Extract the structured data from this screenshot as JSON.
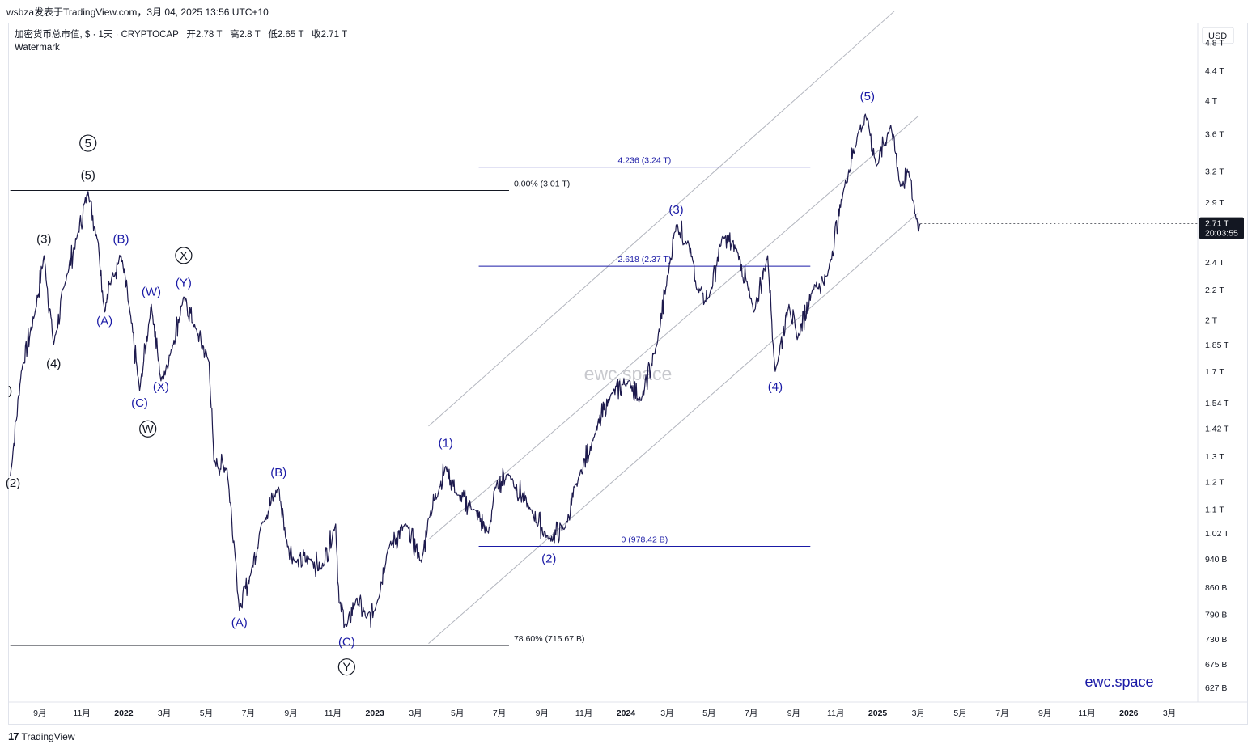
{
  "header": {
    "title": "wsbza发表于TradingView.com，3月 04, 2025 13:56 UTC+10"
  },
  "legend": {
    "symbol": "加密货币总市值, $ · 1天 · CRYPTOCAP",
    "open_label": "开",
    "open": "2.78 T",
    "high_label": "高",
    "high": "2.8 T",
    "low_label": "低",
    "low": "2.65 T",
    "close_label": "收",
    "close": "2.71 T",
    "watermark": "Watermark"
  },
  "footer": {
    "logo": "17",
    "brand": "TradingView"
  },
  "brand_text": "ewc.space",
  "watermark_center": "ewc.space",
  "colors": {
    "price": "#1d1a4d",
    "wave_blue": "#1a1aa6",
    "wave_black": "#131722",
    "channel": "#b2b5be",
    "fib_blue": "#1a1aa6",
    "fib_black": "#131722",
    "price_badge": "#131722"
  },
  "chart_data": {
    "type": "line",
    "title": "",
    "series_name": "",
    "y_unit": "USD",
    "ylim": [
      0.6,
      5.1
    ],
    "y_scale": "log",
    "y_ticks": [
      {
        "label": "4.8 T",
        "v": 4.8
      },
      {
        "label": "4.4 T",
        "v": 4.4
      },
      {
        "label": "4 T",
        "v": 4.0
      },
      {
        "label": "3.6 T",
        "v": 3.6
      },
      {
        "label": "3.2 T",
        "v": 3.2
      },
      {
        "label": "2.9 T",
        "v": 2.9
      },
      {
        "label": "2.4 T",
        "v": 2.4
      },
      {
        "label": "2.2 T",
        "v": 2.2
      },
      {
        "label": "2 T",
        "v": 2.0
      },
      {
        "label": "1.85 T",
        "v": 1.85
      },
      {
        "label": "1.7 T",
        "v": 1.7
      },
      {
        "label": "1.54 T",
        "v": 1.54
      },
      {
        "label": "1.42 T",
        "v": 1.42
      },
      {
        "label": "1.3 T",
        "v": 1.3
      },
      {
        "label": "1.2 T",
        "v": 1.2
      },
      {
        "label": "1.1 T",
        "v": 1.1
      },
      {
        "label": "1.02 T",
        "v": 1.02
      },
      {
        "label": "940 B",
        "v": 0.94
      },
      {
        "label": "860 B",
        "v": 0.86
      },
      {
        "label": "790 B",
        "v": 0.79
      },
      {
        "label": "730 B",
        "v": 0.73
      },
      {
        "label": "675 B",
        "v": 0.675
      },
      {
        "label": "627 B",
        "v": 0.627
      }
    ],
    "x_ticks": [
      {
        "label": "9月",
        "t": "2021-09"
      },
      {
        "label": "11月",
        "t": "2021-11"
      },
      {
        "label": "2022",
        "t": "2022-01"
      },
      {
        "label": "3月",
        "t": "2022-03"
      },
      {
        "label": "5月",
        "t": "2022-05"
      },
      {
        "label": "7月",
        "t": "2022-07"
      },
      {
        "label": "9月",
        "t": "2022-09"
      },
      {
        "label": "11月",
        "t": "2022-11"
      },
      {
        "label": "2023",
        "t": "2023-01"
      },
      {
        "label": "3月",
        "t": "2023-03"
      },
      {
        "label": "5月",
        "t": "2023-05"
      },
      {
        "label": "7月",
        "t": "2023-07"
      },
      {
        "label": "9月",
        "t": "2023-09"
      },
      {
        "label": "11月",
        "t": "2023-11"
      },
      {
        "label": "2024",
        "t": "2024-01"
      },
      {
        "label": "3月",
        "t": "2024-03"
      },
      {
        "label": "5月",
        "t": "2024-05"
      },
      {
        "label": "7月",
        "t": "2024-07"
      },
      {
        "label": "9月",
        "t": "2024-09"
      },
      {
        "label": "11月",
        "t": "2024-11"
      },
      {
        "label": "2025",
        "t": "2025-01"
      },
      {
        "label": "3月",
        "t": "2025-03"
      },
      {
        "label": "5月",
        "t": "2025-05"
      },
      {
        "label": "7月",
        "t": "2025-07"
      },
      {
        "label": "9月",
        "t": "2025-09"
      },
      {
        "label": "11月",
        "t": "2025-11"
      },
      {
        "label": "2026",
        "t": "2026-01"
      },
      {
        "label": "3月",
        "t": "2026-03"
      }
    ],
    "price_points": [
      [
        "2021-07-20",
        1.22
      ],
      [
        "2021-08-05",
        1.7
      ],
      [
        "2021-08-25",
        2.05
      ],
      [
        "2021-09-07",
        2.45
      ],
      [
        "2021-09-21",
        1.85
      ],
      [
        "2021-10-10",
        2.3
      ],
      [
        "2021-10-25",
        2.6
      ],
      [
        "2021-11-10",
        3.0
      ],
      [
        "2021-11-25",
        2.55
      ],
      [
        "2021-12-04",
        2.05
      ],
      [
        "2021-12-15",
        2.3
      ],
      [
        "2021-12-28",
        2.45
      ],
      [
        "2022-01-10",
        2.05
      ],
      [
        "2022-01-24",
        1.6
      ],
      [
        "2022-02-10",
        2.1
      ],
      [
        "2022-02-24",
        1.65
      ],
      [
        "2022-03-10",
        1.8
      ],
      [
        "2022-03-29",
        2.15
      ],
      [
        "2022-04-15",
        1.95
      ],
      [
        "2022-05-05",
        1.75
      ],
      [
        "2022-05-12",
        1.28
      ],
      [
        "2022-05-31",
        1.25
      ],
      [
        "2022-06-13",
        0.93
      ],
      [
        "2022-06-18",
        0.8
      ],
      [
        "2022-07-05",
        0.9
      ],
      [
        "2022-07-20",
        1.05
      ],
      [
        "2022-08-14",
        1.18
      ],
      [
        "2022-08-25",
        1.0
      ],
      [
        "2022-09-07",
        0.93
      ],
      [
        "2022-09-30",
        0.94
      ],
      [
        "2022-10-15",
        0.91
      ],
      [
        "2022-11-05",
        1.05
      ],
      [
        "2022-11-10",
        0.82
      ],
      [
        "2022-11-21",
        0.76
      ],
      [
        "2022-12-05",
        0.83
      ],
      [
        "2022-12-20",
        0.78
      ],
      [
        "2023-01-01",
        0.8
      ],
      [
        "2023-01-20",
        0.97
      ],
      [
        "2023-02-15",
        1.05
      ],
      [
        "2023-03-10",
        0.93
      ],
      [
        "2023-03-20",
        1.07
      ],
      [
        "2023-04-05",
        1.18
      ],
      [
        "2023-04-14",
        1.26
      ],
      [
        "2023-05-01",
        1.15
      ],
      [
        "2023-05-25",
        1.1
      ],
      [
        "2023-06-15",
        1.02
      ],
      [
        "2023-06-25",
        1.18
      ],
      [
        "2023-07-14",
        1.23
      ],
      [
        "2023-08-15",
        1.1
      ],
      [
        "2023-09-11",
        1.0
      ],
      [
        "2023-10-05",
        1.04
      ],
      [
        "2023-10-25",
        1.22
      ],
      [
        "2023-11-15",
        1.38
      ],
      [
        "2023-12-10",
        1.58
      ],
      [
        "2024-01-05",
        1.65
      ],
      [
        "2024-01-23",
        1.55
      ],
      [
        "2024-02-15",
        1.85
      ],
      [
        "2024-03-05",
        2.4
      ],
      [
        "2024-03-14",
        2.7
      ],
      [
        "2024-04-01",
        2.55
      ],
      [
        "2024-04-13",
        2.2
      ],
      [
        "2024-05-01",
        2.15
      ],
      [
        "2024-05-20",
        2.6
      ],
      [
        "2024-06-10",
        2.5
      ],
      [
        "2024-07-05",
        2.05
      ],
      [
        "2024-07-25",
        2.45
      ],
      [
        "2024-08-05",
        1.7
      ],
      [
        "2024-08-25",
        2.1
      ],
      [
        "2024-09-06",
        1.88
      ],
      [
        "2024-09-28",
        2.2
      ],
      [
        "2024-10-20",
        2.3
      ],
      [
        "2024-11-12",
        3.0
      ],
      [
        "2024-12-05",
        3.65
      ],
      [
        "2024-12-17",
        3.78
      ],
      [
        "2024-12-30",
        3.25
      ],
      [
        "2025-01-20",
        3.7
      ],
      [
        "2025-02-03",
        3.05
      ],
      [
        "2025-02-15",
        3.2
      ],
      [
        "2025-02-26",
        2.75
      ],
      [
        "2025-03-04",
        2.71
      ]
    ],
    "last_price": {
      "label": "2.71 T",
      "countdown": "20:03:55"
    },
    "fib_levels": [
      {
        "label": "4.236 (3.24 T)",
        "v": 3.24,
        "t_start": "2023-06-01",
        "t_end": "2024-09-25",
        "color": "blue"
      },
      {
        "label": "2.618 (2.37 T)",
        "v": 2.37,
        "t_start": "2023-06-01",
        "t_end": "2024-09-25",
        "color": "blue"
      },
      {
        "label": "0 (978.42 B)",
        "v": 0.97842,
        "t_start": "2023-06-01",
        "t_end": "2024-09-25",
        "color": "blue"
      },
      {
        "label": "0.00% (3.01 T)",
        "v": 3.01,
        "t_start": "2021-07-20",
        "t_end": "2023-07-15",
        "color": "black"
      },
      {
        "label": "78.60% (715.67 B)",
        "v": 0.71567,
        "t_start": "2021-07-20",
        "t_end": "2023-07-15",
        "color": "black"
      }
    ],
    "channels": [
      {
        "t1": "2023-03-20",
        "v1": 1.43,
        "t2": "2025-01-25",
        "v2": 5.3
      },
      {
        "t1": "2023-03-20",
        "v1": 1.0,
        "t2": "2025-02-28",
        "v2": 3.8
      },
      {
        "t1": "2023-03-20",
        "v1": 0.72,
        "t2": "2025-02-28",
        "v2": 2.8
      }
    ],
    "wave_labels": [
      {
        "text": "(1)",
        "t": "2023-04-14",
        "v": 1.34,
        "color": "blue",
        "circle": false
      },
      {
        "text": "(2)",
        "t": "2023-09-11",
        "v": 0.93,
        "color": "blue",
        "circle": false
      },
      {
        "text": "(3)",
        "t": "2024-03-14",
        "v": 2.8,
        "color": "blue",
        "circle": false
      },
      {
        "text": "(4)",
        "t": "2024-08-05",
        "v": 1.6,
        "color": "blue",
        "circle": false
      },
      {
        "text": "(5)",
        "t": "2024-12-17",
        "v": 4.0,
        "color": "blue",
        "circle": false
      },
      {
        "text": "(A)",
        "t": "2021-12-04",
        "v": 1.97,
        "color": "blue",
        "circle": false
      },
      {
        "text": "(B)",
        "t": "2021-12-28",
        "v": 2.55,
        "color": "blue",
        "circle": false
      },
      {
        "text": "(C)",
        "t": "2022-01-24",
        "v": 1.52,
        "color": "blue",
        "circle": false
      },
      {
        "text": "(W)",
        "t": "2022-02-10",
        "v": 2.16,
        "color": "blue",
        "circle": false
      },
      {
        "text": "(X)",
        "t": "2022-02-24",
        "v": 1.6,
        "color": "blue",
        "circle": false
      },
      {
        "text": "(Y)",
        "t": "2022-03-29",
        "v": 2.22,
        "color": "blue",
        "circle": false
      },
      {
        "text": "(A)",
        "t": "2022-06-18",
        "v": 0.76,
        "color": "blue",
        "circle": false
      },
      {
        "text": "(B)",
        "t": "2022-08-14",
        "v": 1.22,
        "color": "blue",
        "circle": false
      },
      {
        "text": "(C)",
        "t": "2022-11-21",
        "v": 0.715,
        "color": "blue",
        "circle": false
      },
      {
        "text": "(3)",
        "t": "2021-09-07",
        "v": 2.55,
        "color": "black",
        "circle": false
      },
      {
        "text": "(4)",
        "t": "2021-09-21",
        "v": 1.72,
        "color": "black",
        "circle": false
      },
      {
        "text": "(5)",
        "t": "2021-11-10",
        "v": 3.12,
        "color": "black",
        "circle": false
      },
      {
        "text": "(2)",
        "t": "2021-07-24",
        "v": 1.18,
        "color": "black",
        "circle": false
      },
      {
        "text": ")",
        "t": "2021-07-20",
        "v": 1.58,
        "color": "black",
        "circle": false
      },
      {
        "text": "5",
        "t": "2021-11-10",
        "v": 3.45,
        "color": "black",
        "circle": true
      },
      {
        "text": "X",
        "t": "2022-03-29",
        "v": 2.42,
        "color": "black",
        "circle": true
      },
      {
        "text": "W",
        "t": "2022-02-05",
        "v": 1.4,
        "color": "black",
        "circle": true
      },
      {
        "text": "Y",
        "t": "2022-11-21",
        "v": 0.66,
        "color": "black",
        "circle": true
      }
    ]
  }
}
